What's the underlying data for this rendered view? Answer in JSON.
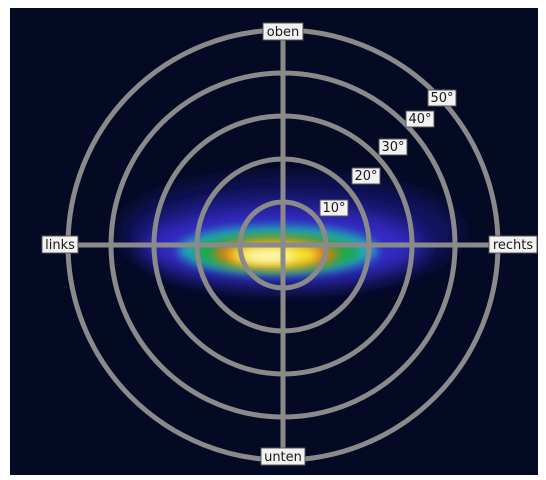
{
  "diagram": {
    "type": "polar-intensity-plot",
    "colors": {
      "background": "#050a24",
      "grid": "#8a8a8a",
      "label_box": "#f2f2f2",
      "intensity_low": "#2a1fb8",
      "intensity_mid": "#1aa84a",
      "intensity_high": "#f4e830",
      "intensity_peak": "#fff7c8"
    },
    "directions": {
      "top": "oben",
      "bottom": "unten",
      "left": "links",
      "right": "rechts"
    },
    "rings": [
      {
        "angle": 10,
        "label": "10°"
      },
      {
        "angle": 20,
        "label": "20°"
      },
      {
        "angle": 30,
        "label": "30°"
      },
      {
        "angle": 40,
        "label": "40°"
      },
      {
        "angle": 50,
        "label": "50°"
      }
    ]
  }
}
